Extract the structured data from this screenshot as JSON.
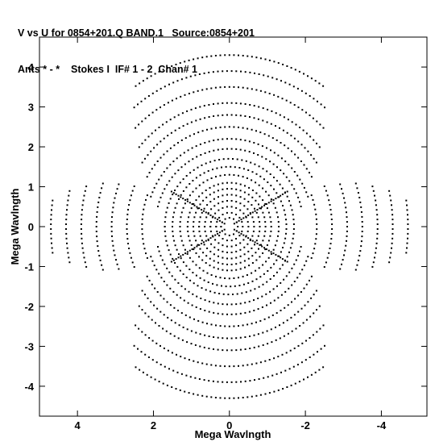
{
  "header": {
    "line1": "V vs U for 0854+201.Q BAND.1   Source:0854+201",
    "line2": "Ants * - *    Stokes I  IF# 1 - 2  Chan# 1"
  },
  "chart_data": {
    "type": "scatter",
    "title": "V vs U for 0854+201.Q BAND.1   Source:0854+201",
    "subtitle": "Ants * - *    Stokes I  IF# 1 - 2  Chan# 1",
    "xlabel": "Mega Wavlngth",
    "ylabel": "Mega Wavlngth",
    "xlim": [
      5.0,
      -5.2
    ],
    "ylim": [
      -4.75,
      4.75
    ],
    "x_ticks": [
      4,
      2,
      0,
      -2,
      -4
    ],
    "y_ticks": [
      4,
      3,
      2,
      1,
      0,
      -1,
      -2,
      -3,
      -4
    ],
    "x_tick_labels": [
      "4",
      "2",
      "0",
      "-2",
      "-4"
    ],
    "y_tick_labels": [
      "4",
      "3",
      "2",
      "1",
      "0",
      "-1",
      "-2",
      "-3",
      "-4"
    ],
    "grid": false,
    "marker_color": "#000000",
    "series": [
      {
        "description": "uv-coverage tracks (approximate, symmetric about origin)",
        "arcs": [
          {
            "radius": 0.22,
            "from_deg": 0,
            "to_deg": 360
          },
          {
            "radius": 0.35,
            "from_deg": 0,
            "to_deg": 360
          },
          {
            "radius": 0.5,
            "from_deg": 0,
            "to_deg": 360
          },
          {
            "radius": 0.65,
            "from_deg": 0,
            "to_deg": 360
          },
          {
            "radius": 0.8,
            "from_deg": 0,
            "to_deg": 360
          },
          {
            "radius": 0.95,
            "from_deg": 0,
            "to_deg": 360
          },
          {
            "radius": 1.1,
            "from_deg": 0,
            "to_deg": 360
          },
          {
            "radius": 1.3,
            "from_deg": 0,
            "to_deg": 360
          },
          {
            "radius": 1.5,
            "from_deg": 0,
            "to_deg": 360
          },
          {
            "radius": 1.7,
            "from_deg": 0,
            "to_deg": 360
          },
          {
            "radius": 1.95,
            "from_deg": 15,
            "to_deg": 165
          },
          {
            "radius": 1.95,
            "from_deg": 195,
            "to_deg": 345
          },
          {
            "radius": 2.2,
            "from_deg": 20,
            "to_deg": 160
          },
          {
            "radius": 2.2,
            "from_deg": 200,
            "to_deg": 340
          },
          {
            "radius": 2.5,
            "from_deg": 30,
            "to_deg": 150
          },
          {
            "radius": 2.5,
            "from_deg": 210,
            "to_deg": 330
          },
          {
            "radius": 2.8,
            "from_deg": 35,
            "to_deg": 145
          },
          {
            "radius": 2.8,
            "from_deg": 215,
            "to_deg": 325
          },
          {
            "radius": 3.1,
            "from_deg": 40,
            "to_deg": 140
          },
          {
            "radius": 3.1,
            "from_deg": 220,
            "to_deg": 320
          },
          {
            "radius": 3.5,
            "from_deg": 45,
            "to_deg": 135
          },
          {
            "radius": 3.5,
            "from_deg": 225,
            "to_deg": 315
          },
          {
            "radius": 3.9,
            "from_deg": 50,
            "to_deg": 130
          },
          {
            "radius": 3.9,
            "from_deg": 230,
            "to_deg": 310
          },
          {
            "radius": 4.3,
            "from_deg": 55,
            "to_deg": 125
          },
          {
            "radius": 4.3,
            "from_deg": 235,
            "to_deg": 305
          },
          {
            "radius": 2.3,
            "from_deg": -20,
            "to_deg": 20
          },
          {
            "radius": 2.3,
            "from_deg": 160,
            "to_deg": 200
          },
          {
            "radius": 2.7,
            "from_deg": -22,
            "to_deg": 22
          },
          {
            "radius": 2.7,
            "from_deg": 158,
            "to_deg": 202
          },
          {
            "radius": 3.1,
            "from_deg": -20,
            "to_deg": 20
          },
          {
            "radius": 3.1,
            "from_deg": 160,
            "to_deg": 200
          },
          {
            "radius": 3.5,
            "from_deg": -18,
            "to_deg": 18
          },
          {
            "radius": 3.5,
            "from_deg": 162,
            "to_deg": 198
          },
          {
            "radius": 3.9,
            "from_deg": -15,
            "to_deg": 15
          },
          {
            "radius": 3.9,
            "from_deg": 165,
            "to_deg": 195
          },
          {
            "radius": 4.3,
            "from_deg": -12,
            "to_deg": 12
          },
          {
            "radius": 4.3,
            "from_deg": 168,
            "to_deg": 192
          },
          {
            "radius": 4.7,
            "from_deg": -8,
            "to_deg": 8
          },
          {
            "radius": 4.7,
            "from_deg": 172,
            "to_deg": 188
          }
        ],
        "spokes": [
          {
            "angle_deg": 30,
            "to_radius": 1.8
          },
          {
            "angle_deg": 150,
            "to_radius": 1.8
          },
          {
            "angle_deg": 210,
            "to_radius": 1.8
          },
          {
            "angle_deg": 330,
            "to_radius": 1.8
          }
        ]
      }
    ]
  }
}
